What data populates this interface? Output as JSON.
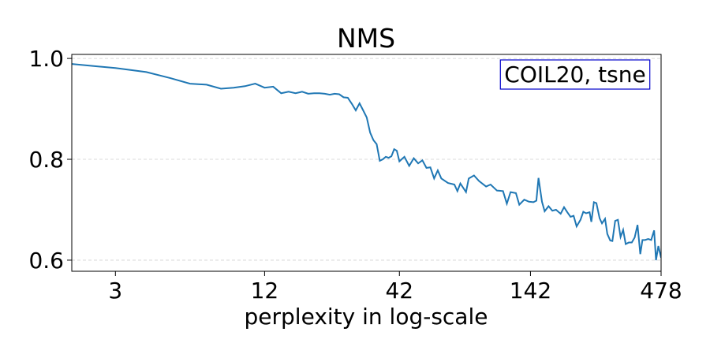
{
  "chart_data": {
    "type": "line",
    "title": "NMS",
    "x_label": "perplexity in log-scale",
    "annotation": "COIL20, tsne",
    "x_scale": "log",
    "grid": "y",
    "xlim": [
      2,
      478
    ],
    "xticks": [
      3,
      12,
      42,
      142,
      478
    ],
    "ylim": [
      0.578,
      1.008
    ],
    "yticks": [
      {
        "value": 1.0,
        "label": "1.0"
      },
      0.8,
      0.6
    ],
    "series": [
      {
        "name": "NMS",
        "color": "#1f77b4",
        "x": [
          2,
          3,
          4,
          5,
          6,
          7,
          8,
          9,
          10,
          11,
          12,
          13,
          14,
          15,
          16,
          17,
          18,
          19,
          20,
          21,
          22,
          23,
          24,
          25,
          26,
          27,
          28,
          29,
          30,
          31,
          32,
          33,
          34,
          35,
          36,
          37,
          38,
          39,
          40,
          41,
          42,
          44,
          46,
          48,
          50,
          52,
          54,
          56,
          58,
          60,
          62,
          66,
          70,
          72,
          74,
          78,
          80,
          84,
          88,
          94,
          98,
          104,
          110,
          114,
          118,
          124,
          128,
          134,
          140,
          146,
          150,
          153,
          158,
          162,
          168,
          174,
          180,
          188,
          194,
          200,
          206,
          212,
          218,
          226,
          232,
          238,
          246,
          250,
          256,
          262,
          270,
          276,
          284,
          290,
          298,
          304,
          312,
          320,
          328,
          336,
          344,
          354,
          364,
          374,
          384,
          394,
          402,
          412,
          424,
          436,
          448,
          456,
          466,
          478
        ],
        "values": [
          0.989,
          0.981,
          0.973,
          0.961,
          0.95,
          0.948,
          0.94,
          0.942,
          0.945,
          0.95,
          0.942,
          0.944,
          0.931,
          0.934,
          0.931,
          0.934,
          0.93,
          0.931,
          0.931,
          0.93,
          0.928,
          0.93,
          0.929,
          0.923,
          0.922,
          0.91,
          0.897,
          0.911,
          0.897,
          0.883,
          0.853,
          0.838,
          0.83,
          0.797,
          0.8,
          0.805,
          0.803,
          0.806,
          0.82,
          0.817,
          0.796,
          0.805,
          0.787,
          0.802,
          0.792,
          0.798,
          0.783,
          0.784,
          0.762,
          0.778,
          0.762,
          0.753,
          0.75,
          0.737,
          0.752,
          0.735,
          0.762,
          0.768,
          0.757,
          0.746,
          0.75,
          0.738,
          0.737,
          0.712,
          0.735,
          0.733,
          0.71,
          0.72,
          0.716,
          0.715,
          0.718,
          0.763,
          0.716,
          0.697,
          0.707,
          0.698,
          0.7,
          0.692,
          0.705,
          0.695,
          0.686,
          0.688,
          0.667,
          0.68,
          0.696,
          0.693,
          0.695,
          0.676,
          0.715,
          0.713,
          0.683,
          0.673,
          0.682,
          0.652,
          0.639,
          0.638,
          0.678,
          0.68,
          0.646,
          0.66,
          0.632,
          0.635,
          0.635,
          0.645,
          0.67,
          0.612,
          0.64,
          0.64,
          0.642,
          0.64,
          0.659,
          0.6,
          0.628,
          0.605
        ]
      }
    ]
  }
}
